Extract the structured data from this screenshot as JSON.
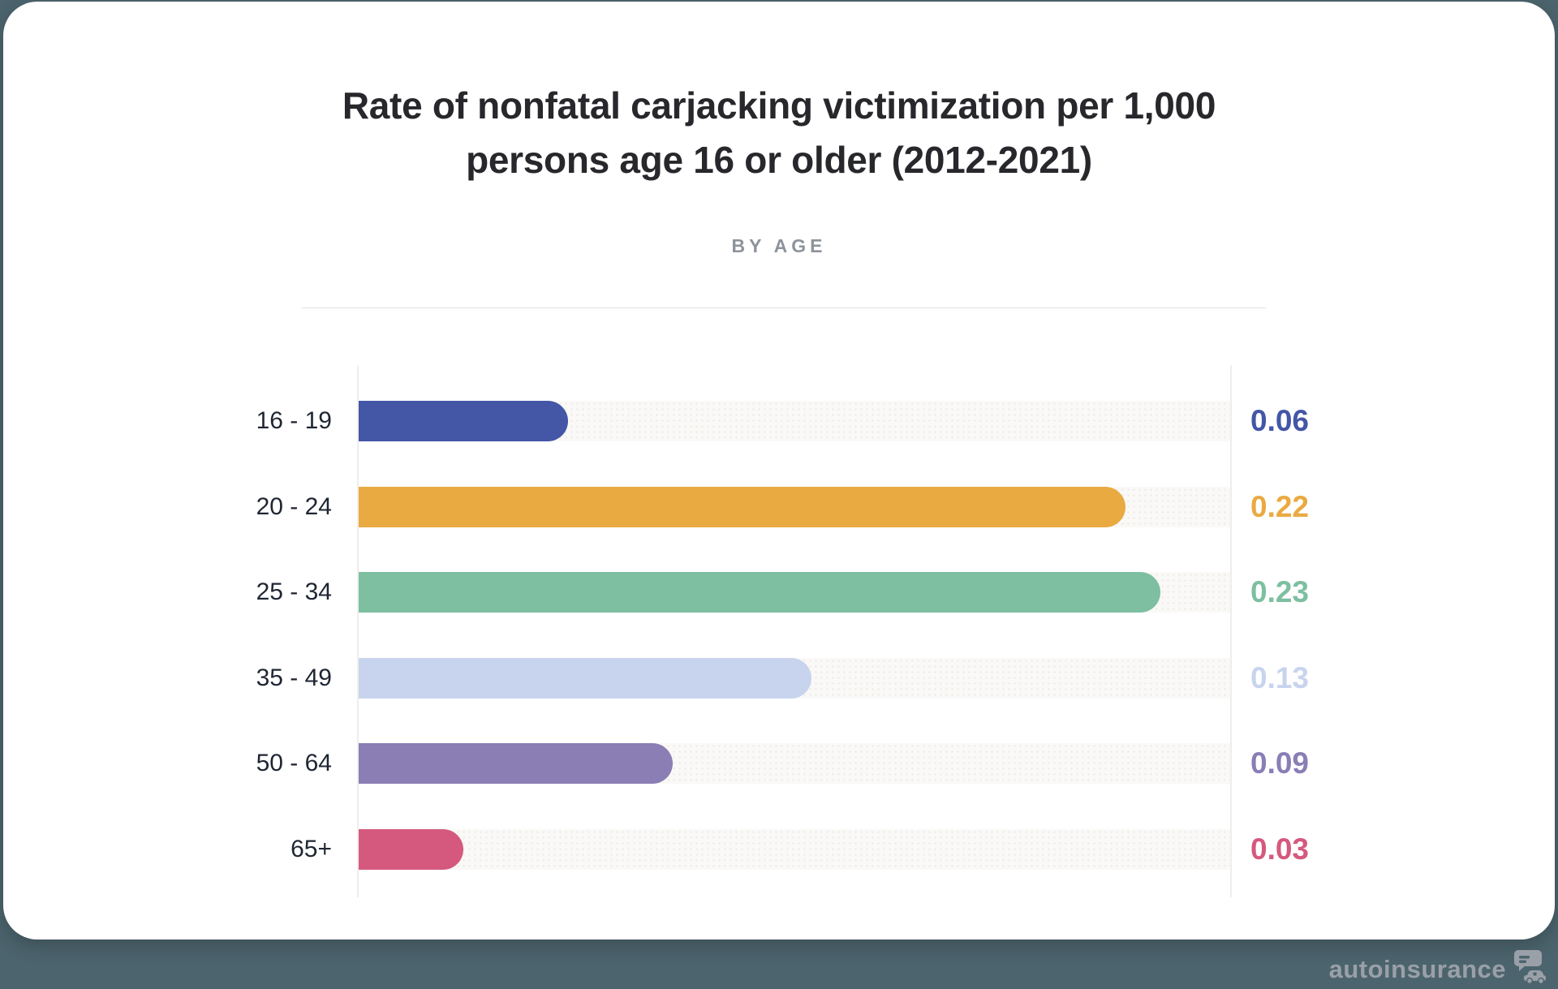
{
  "page": {
    "background_color": "#4c646d",
    "card_color": "#ffffff"
  },
  "header": {
    "title_lines": [
      "Rate of nonfatal carjacking victimization per 1,000",
      "persons age 16 or older (2012-2021)"
    ],
    "subtitle": "BY AGE"
  },
  "chart_data": {
    "type": "bar",
    "orientation": "horizontal",
    "title": "Rate of nonfatal carjacking victimization per 1,000 persons age 16 or older (2012-2021)",
    "subtitle": "BY AGE",
    "categories": [
      "16 - 19",
      "20 - 24",
      "25 - 34",
      "35 - 49",
      "50 - 64",
      "65+"
    ],
    "values": [
      0.06,
      0.22,
      0.23,
      0.13,
      0.09,
      0.03
    ],
    "value_labels": [
      "0.06",
      "0.22",
      "0.23",
      "0.13",
      "0.09",
      "0.03"
    ],
    "bar_colors": [
      "#4456a6",
      "#eaaa42",
      "#7dbfa0",
      "#c8d4ee",
      "#8a7eb5",
      "#d5597e"
    ],
    "xlim": [
      0,
      0.25
    ],
    "grid": false,
    "legend": false,
    "value_label_position": "right",
    "track_color": "#faf9f7"
  },
  "watermark": {
    "brand": "autoinsurance",
    "logo": "car-chat-logo-icon",
    "color": "#9aa0a8"
  }
}
